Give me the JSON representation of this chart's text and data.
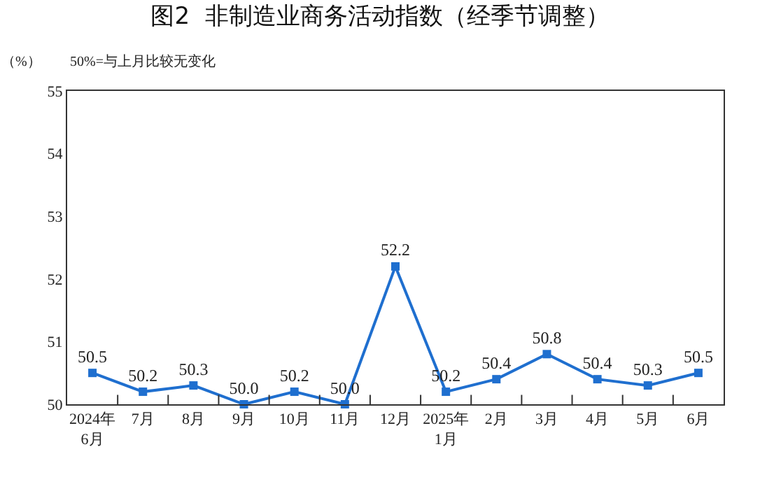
{
  "chart_data": {
    "type": "line",
    "title": "图2  非制造业商务活动指数（经季节调整）",
    "ylabel": "（%）",
    "annotations": [
      "50%=与上月比较无变化"
    ],
    "categories": [
      "2024年\n6月",
      "7月",
      "8月",
      "9月",
      "10月",
      "11月",
      "12月",
      "2025年\n1月",
      "2月",
      "3月",
      "4月",
      "5月",
      "6月"
    ],
    "series": [
      {
        "color": "#1f6fcf",
        "values": [
          50.5,
          50.2,
          50.3,
          50.0,
          50.2,
          50.0,
          52.2,
          50.2,
          50.4,
          50.8,
          50.4,
          50.3,
          50.5
        ]
      }
    ],
    "value_labels": [
      "50.5",
      "50.2",
      "50.3",
      "50.0",
      "50.2",
      "50.0",
      "52.2",
      "50.2",
      "50.4",
      "50.8",
      "50.4",
      "50.3",
      "50.5"
    ],
    "ylim": [
      50,
      55
    ],
    "yticks": [
      50,
      51,
      52,
      53,
      54,
      55
    ],
    "marker": "square",
    "line_style": "solid"
  }
}
